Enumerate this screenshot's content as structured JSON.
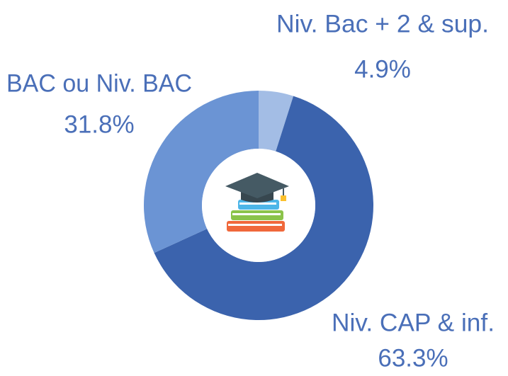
{
  "chart_data": {
    "type": "donut",
    "categories": [
      "Niv. Bac + 2 & sup.",
      "Niv. CAP & inf.",
      "BAC ou Niv. BAC"
    ],
    "values": [
      4.9,
      63.3,
      31.8
    ],
    "value_labels": [
      "4.9%",
      "63.3%",
      "31.8%"
    ],
    "colors": [
      "#a3bde5",
      "#3b63ad",
      "#6b94d4"
    ]
  }
}
